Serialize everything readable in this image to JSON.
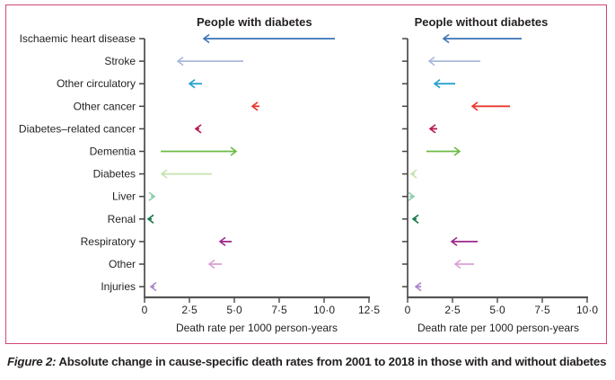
{
  "caption": {
    "label": "Figure 2:",
    "text": " Absolute change in cause-specific death rates from 2001 to 2018 in those with and without diabetes"
  },
  "chart_data": [
    {
      "type": "arrow",
      "title": "People with diabetes",
      "xlabel": "Death rate per 1000 person-years",
      "ylabel": "",
      "xlim": [
        0,
        12.5
      ],
      "xticks": [
        0,
        2.5,
        5.0,
        7.5,
        10.0,
        12.5
      ],
      "xtick_labels": [
        "0",
        "2·5",
        "5·0",
        "7·5",
        "10·0",
        "12·5"
      ],
      "grid": false,
      "categories": [
        "Ischaemic heart disease",
        "Stroke",
        "Other circulatory",
        "Other cancer",
        "Diabetes–related cancer",
        "Dementia",
        "Diabetes",
        "Liver",
        "Renal",
        "Respiratory",
        "Other",
        "Injuries"
      ],
      "series": [
        {
          "name": "2001",
          "values": [
            10.6,
            5.5,
            3.2,
            6.4,
            3.05,
            0.9,
            3.75,
            0.35,
            0.4,
            4.85,
            4.3,
            0.55
          ]
        },
        {
          "name": "2018",
          "values": [
            3.3,
            1.85,
            2.5,
            6.0,
            2.85,
            5.1,
            0.95,
            0.55,
            0.2,
            4.2,
            3.6,
            0.35
          ]
        }
      ]
    },
    {
      "type": "arrow",
      "title": "People without diabetes",
      "xlabel": "Death rate per 1000 person-years",
      "ylabel": "",
      "xlim": [
        0,
        10.0
      ],
      "xticks": [
        0,
        2.5,
        5.0,
        7.5,
        10.0
      ],
      "xtick_labels": [
        "0",
        "2·5",
        "5·0",
        "7·5",
        "10·0"
      ],
      "grid": false,
      "categories": [
        "Ischaemic heart disease",
        "Stroke",
        "Other circulatory",
        "Other cancer",
        "Diabetes–related cancer",
        "Dementia",
        "Diabetes",
        "Liver",
        "Renal",
        "Respiratory",
        "Other",
        "Injuries"
      ],
      "series": [
        {
          "name": "2001",
          "values": [
            6.35,
            4.05,
            2.65,
            5.7,
            1.65,
            1.05,
            0.4,
            0.1,
            0.5,
            3.9,
            3.7,
            0.75
          ]
        },
        {
          "name": "2018",
          "values": [
            2.0,
            1.2,
            1.5,
            3.6,
            1.25,
            2.9,
            0.2,
            0.35,
            0.3,
            2.45,
            2.65,
            0.45
          ]
        }
      ]
    }
  ],
  "category_colors": [
    "#3a73b5",
    "#a9b8dc",
    "#27a2cc",
    "#e8382e",
    "#b8164c",
    "#6dbb45",
    "#c6e3b0",
    "#8ccfa8",
    "#1a7a4a",
    "#9c2a8c",
    "#d9a0d4",
    "#a985c8"
  ]
}
